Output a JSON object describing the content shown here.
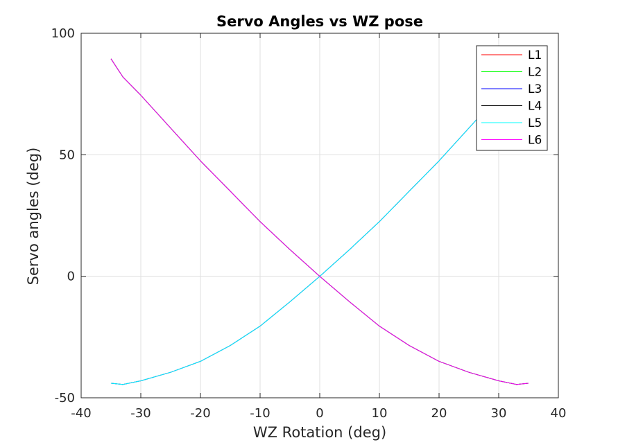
{
  "chart_data": {
    "type": "line",
    "title": "Servo Angles vs WZ pose",
    "xlabel": "WZ Rotation (deg)",
    "ylabel": "Servo angles (deg)",
    "xlim": [
      -40,
      40
    ],
    "ylim": [
      -50,
      100
    ],
    "xticks": [
      -40,
      -30,
      -20,
      -10,
      0,
      10,
      20,
      30,
      40
    ],
    "yticks": [
      -50,
      0,
      50,
      100
    ],
    "grid": true,
    "legend_position": "top-right",
    "x": [
      -35,
      -33,
      -30,
      -25,
      -20,
      -15,
      -10,
      -5,
      0,
      5,
      10,
      15,
      20,
      25,
      30,
      33,
      35
    ],
    "series": [
      {
        "name": "L1",
        "color": "#ff0000",
        "values": [
          -44,
          -44.5,
          -43,
          -39.5,
          -35,
          -28.5,
          -20.5,
          -10.5,
          0,
          11,
          22.5,
          35,
          47.5,
          61,
          74.5,
          82,
          89.5
        ]
      },
      {
        "name": "L2",
        "color": "#00ff00",
        "values": [
          89.5,
          82,
          74.5,
          61,
          47.5,
          35,
          22.5,
          11,
          0,
          -10.5,
          -20.5,
          -28.5,
          -35,
          -39.5,
          -43,
          -44.5,
          -44
        ]
      },
      {
        "name": "L3",
        "color": "#0000ff",
        "values": [
          -44,
          -44.5,
          -43,
          -39.5,
          -35,
          -28.5,
          -20.5,
          -10.5,
          0,
          11,
          22.5,
          35,
          47.5,
          61,
          74.5,
          82,
          89.5
        ]
      },
      {
        "name": "L4",
        "color": "#000000",
        "values": [
          89.5,
          82,
          74.5,
          61,
          47.5,
          35,
          22.5,
          11,
          0,
          -10.5,
          -20.5,
          -28.5,
          -35,
          -39.5,
          -43,
          -44.5,
          -44
        ]
      },
      {
        "name": "L5",
        "color": "#00ffff",
        "values": [
          -44,
          -44.5,
          -43,
          -39.5,
          -35,
          -28.5,
          -20.5,
          -10.5,
          0,
          11,
          22.5,
          35,
          47.5,
          61,
          74.5,
          82,
          89.5
        ]
      },
      {
        "name": "L6",
        "color": "#ff00ff",
        "values": [
          89.5,
          82,
          74.5,
          61,
          47.5,
          35,
          22.5,
          11,
          0,
          -10.5,
          -20.5,
          -28.5,
          -35,
          -39.5,
          -43,
          -44.5,
          -44
        ]
      }
    ]
  }
}
